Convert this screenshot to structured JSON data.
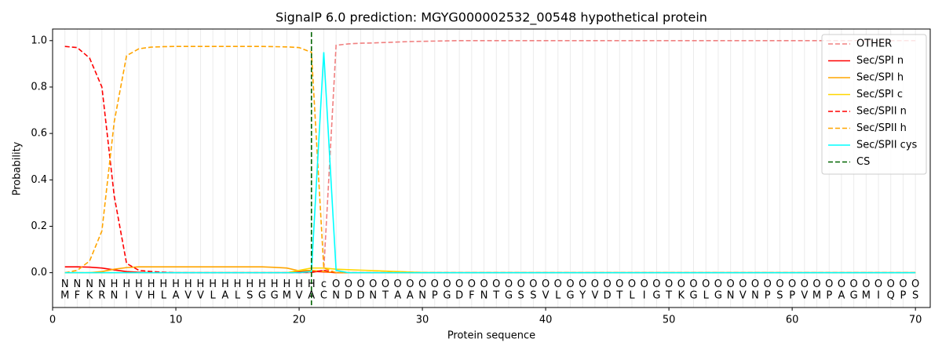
{
  "chart_data": {
    "type": "line",
    "title": "SignalP 6.0 prediction: MGYG000002532_00548 hypothetical protein",
    "xlabel": "Protein sequence",
    "ylabel": "Probability",
    "x": [
      1,
      2,
      3,
      4,
      5,
      6,
      7,
      8,
      9,
      10,
      11,
      12,
      13,
      14,
      15,
      16,
      17,
      18,
      19,
      20,
      21,
      22,
      23,
      24,
      25,
      26,
      27,
      28,
      29,
      30,
      31,
      32,
      33,
      34,
      35,
      36,
      37,
      38,
      39,
      40,
      41,
      42,
      43,
      44,
      45,
      46,
      47,
      48,
      49,
      50,
      51,
      52,
      53,
      54,
      55,
      56,
      57,
      58,
      59,
      60,
      61,
      62,
      63,
      64,
      65,
      66,
      67,
      68,
      69,
      70
    ],
    "xlim": [
      0,
      71.2
    ],
    "ylim": [
      -0.15,
      1.05
    ],
    "xticks": [
      0,
      10,
      20,
      30,
      40,
      50,
      60,
      70
    ],
    "yticks": [
      {
        "value": 0,
        "label": "0.0"
      },
      0.2,
      0.4,
      0.6,
      0.8,
      {
        "value": 1,
        "label": "1.0"
      }
    ],
    "grid": true,
    "legend": "upper right",
    "series": [
      {
        "name": "OTHER",
        "color": "#f08080",
        "linestyle": "dashed",
        "values": [
          0,
          0,
          0,
          0,
          0,
          0,
          0,
          0,
          0,
          0,
          0,
          0,
          0,
          0,
          0,
          0,
          0,
          0,
          0,
          0,
          0,
          0.01,
          0.98,
          0.986,
          0.989,
          0.99,
          0.992,
          0.994,
          0.996,
          0.997,
          0.998,
          0.999,
          1,
          1,
          1,
          1,
          1,
          1,
          1,
          1,
          1,
          1,
          1,
          1,
          1,
          1,
          1,
          1,
          1,
          1,
          1,
          1,
          1,
          1,
          1,
          1,
          1,
          1,
          1,
          1,
          1,
          1,
          1,
          1,
          1,
          1,
          1,
          1,
          1,
          1
        ]
      },
      {
        "name": "Sec/SPI n",
        "color": "#ff0000",
        "linestyle": "solid",
        "values": [
          0.025,
          0.025,
          0.024,
          0.02,
          0.012,
          0.005,
          0.002,
          0,
          0,
          0,
          0,
          0,
          0,
          0,
          0,
          0,
          0,
          0,
          0,
          0.003,
          0.006,
          0.003,
          0,
          0,
          0,
          0,
          0,
          0,
          0,
          0,
          0,
          0,
          0,
          0,
          0,
          0,
          0,
          0,
          0,
          0,
          0,
          0,
          0,
          0,
          0,
          0,
          0,
          0,
          0,
          0,
          0,
          0,
          0,
          0,
          0,
          0,
          0,
          0,
          0,
          0,
          0,
          0,
          0,
          0,
          0,
          0,
          0,
          0,
          0,
          0
        ]
      },
      {
        "name": "Sec/SPI h",
        "color": "#ffa500",
        "linestyle": "solid",
        "values": [
          0,
          0,
          0,
          0.005,
          0.015,
          0.022,
          0.025,
          0.025,
          0.025,
          0.025,
          0.025,
          0.025,
          0.025,
          0.025,
          0.025,
          0.025,
          0.025,
          0.023,
          0.02,
          0.008,
          0.01,
          0.005,
          0,
          0,
          0,
          0,
          0,
          0,
          0,
          0,
          0,
          0,
          0,
          0,
          0,
          0,
          0,
          0,
          0,
          0,
          0,
          0,
          0,
          0,
          0,
          0,
          0,
          0,
          0,
          0,
          0,
          0,
          0,
          0,
          0,
          0,
          0,
          0,
          0,
          0,
          0,
          0,
          0,
          0,
          0,
          0,
          0,
          0,
          0,
          0
        ]
      },
      {
        "name": "Sec/SPI c",
        "color": "#ffd700",
        "linestyle": "solid",
        "values": [
          0,
          0,
          0,
          0,
          0,
          0,
          0,
          0,
          0,
          0,
          0,
          0,
          0,
          0,
          0,
          0,
          0,
          0,
          0,
          0.01,
          0.02,
          0.02,
          0.015,
          0.013,
          0.011,
          0.009,
          0.007,
          0.005,
          0.003,
          0.001,
          0,
          0,
          0,
          0,
          0,
          0,
          0,
          0,
          0,
          0,
          0,
          0,
          0,
          0,
          0,
          0,
          0,
          0,
          0,
          0,
          0,
          0,
          0,
          0,
          0,
          0,
          0,
          0,
          0,
          0,
          0,
          0,
          0,
          0,
          0,
          0,
          0,
          0,
          0,
          0
        ]
      },
      {
        "name": "Sec/SPII n",
        "color": "#ff0000",
        "linestyle": "dashed",
        "values": [
          0.975,
          0.97,
          0.925,
          0.8,
          0.33,
          0.04,
          0.01,
          0.005,
          0.002,
          0,
          0,
          0,
          0,
          0,
          0,
          0,
          0,
          0,
          0,
          0,
          0.002,
          0.01,
          0,
          0,
          0,
          0,
          0,
          0,
          0,
          0,
          0,
          0,
          0,
          0,
          0,
          0,
          0,
          0,
          0,
          0,
          0,
          0,
          0,
          0,
          0,
          0,
          0,
          0,
          0,
          0,
          0,
          0,
          0,
          0,
          0,
          0,
          0,
          0,
          0,
          0,
          0,
          0,
          0,
          0,
          0,
          0,
          0,
          0,
          0,
          0
        ]
      },
      {
        "name": "Sec/SPII h",
        "color": "#ffa500",
        "linestyle": "dashed",
        "values": [
          0,
          0.01,
          0.05,
          0.18,
          0.65,
          0.935,
          0.965,
          0.972,
          0.974,
          0.975,
          0.975,
          0.975,
          0.975,
          0.975,
          0.975,
          0.975,
          0.975,
          0.974,
          0.973,
          0.97,
          0.95,
          0.02,
          0,
          0,
          0,
          0,
          0,
          0,
          0,
          0,
          0,
          0,
          0,
          0,
          0,
          0,
          0,
          0,
          0,
          0,
          0,
          0,
          0,
          0,
          0,
          0,
          0,
          0,
          0,
          0,
          0,
          0,
          0,
          0,
          0,
          0,
          0,
          0,
          0,
          0,
          0,
          0,
          0,
          0,
          0,
          0,
          0,
          0,
          0,
          0
        ]
      },
      {
        "name": "Sec/SPII cys",
        "color": "#00ffff",
        "linestyle": "solid",
        "values": [
          0,
          0,
          0,
          0,
          0,
          0,
          0,
          0,
          0,
          0,
          0,
          0,
          0,
          0,
          0,
          0,
          0,
          0,
          0,
          0,
          0.005,
          0.95,
          0.01,
          0,
          0,
          0,
          0,
          0,
          0,
          0,
          0,
          0,
          0,
          0,
          0,
          0,
          0,
          0,
          0,
          0,
          0,
          0,
          0,
          0,
          0,
          0,
          0,
          0,
          0,
          0,
          0,
          0,
          0,
          0,
          0,
          0,
          0,
          0,
          0,
          0,
          0,
          0,
          0,
          0,
          0,
          0,
          0,
          0,
          0,
          0
        ]
      }
    ],
    "vlines": [
      {
        "name": "CS",
        "x": 21,
        "color": "#006400",
        "linestyle": "dashed"
      }
    ],
    "residues": [
      "M",
      "F",
      "K",
      "R",
      "N",
      "I",
      "V",
      "H",
      "L",
      "A",
      "V",
      "V",
      "L",
      "A",
      "L",
      "S",
      "G",
      "G",
      "M",
      "V",
      "A",
      "C",
      "N",
      "D",
      "D",
      "N",
      "T",
      "A",
      "A",
      "N",
      "P",
      "G",
      "D",
      "F",
      "N",
      "T",
      "G",
      "S",
      "S",
      "V",
      "L",
      "G",
      "Y",
      "V",
      "D",
      "T",
      "L",
      "I",
      "G",
      "T",
      "K",
      "G",
      "L",
      "G",
      "N",
      "V",
      "N",
      "P",
      "S",
      "P",
      "V",
      "M",
      "P",
      "A",
      "G",
      "M",
      "I",
      "Q",
      "P",
      "S"
    ],
    "labels": [
      "N",
      "N",
      "N",
      "N",
      "H",
      "H",
      "H",
      "H",
      "H",
      "H",
      "H",
      "H",
      "H",
      "H",
      "H",
      "H",
      "H",
      "H",
      "H",
      "H",
      "H",
      "c",
      "O",
      "O",
      "O",
      "O",
      "O",
      "O",
      "O",
      "O",
      "O",
      "O",
      "O",
      "O",
      "O",
      "O",
      "O",
      "O",
      "O",
      "O",
      "O",
      "O",
      "O",
      "O",
      "O",
      "O",
      "O",
      "O",
      "O",
      "O",
      "O",
      "O",
      "O",
      "O",
      "O",
      "O",
      "O",
      "O",
      "O",
      "O",
      "O",
      "O",
      "O",
      "O",
      "O",
      "O",
      "O",
      "O",
      "O",
      "O"
    ],
    "label_colors": {
      "N": "#ff0000",
      "H": "#ffa500",
      "c": "#00ffff",
      "O": "#808080"
    }
  }
}
